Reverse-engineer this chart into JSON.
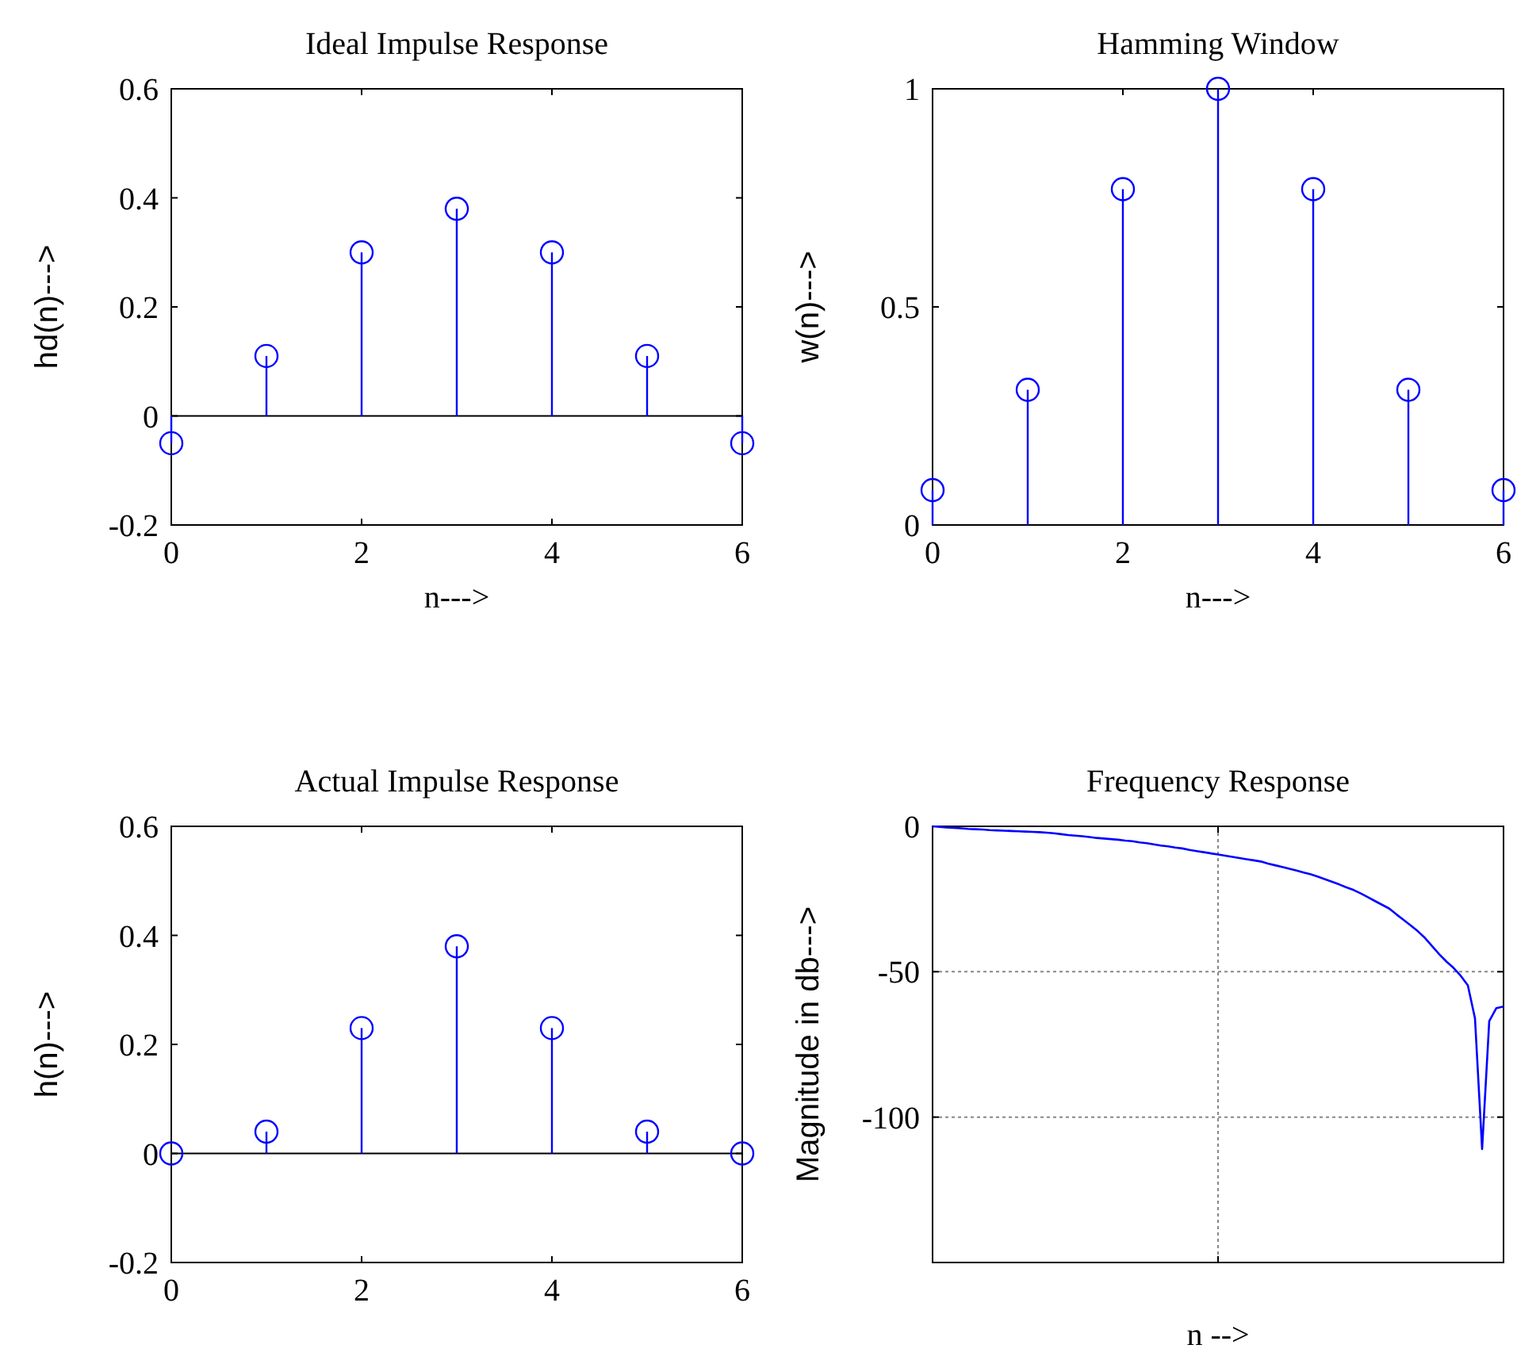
{
  "chart_data": [
    {
      "type": "lollipop",
      "title": "Ideal Impulse Response",
      "xlabel": "n--->",
      "ylabel": "hd(n)--->",
      "x": [
        0,
        1,
        2,
        3,
        4,
        5,
        6
      ],
      "values": [
        -0.05,
        0.11,
        0.3,
        0.38,
        0.3,
        0.11,
        -0.05
      ],
      "color": "#0000ff",
      "xlim": [
        0,
        6
      ],
      "xticks": [
        0,
        2,
        4,
        6
      ],
      "ylim": [
        -0.2,
        0.6
      ],
      "yticks": [
        -0.2,
        0,
        0.2,
        0.4,
        0.6
      ],
      "marker": "circle"
    },
    {
      "type": "lollipop",
      "title": "Hamming Window",
      "xlabel": "n--->",
      "ylabel": "w(n)--->",
      "x": [
        0,
        1,
        2,
        3,
        4,
        5,
        6
      ],
      "values": [
        0.08,
        0.31,
        0.77,
        1,
        0.77,
        0.31,
        0.08
      ],
      "color": "#0000ff",
      "xlim": [
        0,
        6
      ],
      "xticks": [
        0,
        2,
        4,
        6
      ],
      "ylim": [
        0,
        1
      ],
      "yticks": [
        0,
        0.5,
        1
      ],
      "marker": "circle"
    },
    {
      "type": "lollipop",
      "title": "Actual Impulse Response",
      "ylabel": "h(n)--->",
      "x": [
        0,
        1,
        2,
        3,
        4,
        5,
        6
      ],
      "values": [
        0,
        0.04,
        0.23,
        0.38,
        0.23,
        0.04,
        0
      ],
      "color": "#0000ff",
      "xlim": [
        0,
        6
      ],
      "xticks": [
        0,
        2,
        4,
        6
      ],
      "ylim": [
        -0.2,
        0.6
      ],
      "yticks": [
        -0.2,
        0,
        0.2,
        0.4,
        0.6
      ],
      "marker": "circle"
    },
    {
      "type": "line",
      "title": "Frequency Response",
      "xlabel": "n -->",
      "ylabel": "Magnitude in db--->",
      "categories": [
        null,
        null,
        null,
        null,
        null,
        null,
        null,
        null,
        null,
        null,
        null,
        null,
        null,
        null,
        null,
        null,
        null,
        null,
        null,
        null,
        null,
        null,
        null,
        null,
        null,
        null,
        null,
        null,
        null,
        null,
        null,
        null,
        null,
        null,
        null,
        null,
        null,
        null,
        null,
        null,
        null,
        null,
        null,
        null,
        null,
        null,
        null,
        null,
        null,
        null,
        null,
        null,
        null,
        null,
        null,
        null,
        null,
        null,
        null,
        null,
        null,
        null,
        null,
        null,
        null,
        null,
        null,
        null,
        null,
        null,
        null,
        null,
        null,
        null,
        null,
        null,
        null,
        null,
        null,
        null,
        null
      ],
      "values": [
        0,
        -0.2,
        -0.4,
        -0.5,
        -0.7,
        -0.9,
        -1.0,
        -1.1,
        -1.3,
        -1.4,
        -1.5,
        -1.6,
        -1.7,
        -1.8,
        -1.9,
        -2.0,
        -2.2,
        -2.4,
        -2.7,
        -3.0,
        -3.2,
        -3.4,
        -3.7,
        -4.0,
        -4.2,
        -4.4,
        -4.6,
        -4.9,
        -5.1,
        -5.5,
        -5.8,
        -6.2,
        -6.6,
        -6.9,
        -7.3,
        -7.6,
        -8.1,
        -8.5,
        -8.9,
        -9.3,
        -9.7,
        -10.1,
        -10.5,
        -10.9,
        -11.3,
        -11.7,
        -12.1,
        -12.8,
        -13.4,
        -14.0,
        -14.6,
        -15.2,
        -15.9,
        -16.5,
        -17.3,
        -18.2,
        -19.1,
        -20.0,
        -21.0,
        -21.9,
        -23.1,
        -24.4,
        -25.7,
        -27.0,
        -28.3,
        -30.3,
        -32.2,
        -34.1,
        -36.1,
        -38.4,
        -41.2,
        -44.0,
        -46.5,
        -48.7,
        -51.4,
        -54.7,
        -66,
        -111,
        -67,
        -62.5,
        -62
      ],
      "color": "#0000ff",
      "ylim": [
        -150,
        0
      ],
      "yticks": [
        {
          "value": -150,
          "label": null
        },
        -100,
        -50,
        0
      ],
      "grid": true,
      "marker": "none"
    }
  ]
}
